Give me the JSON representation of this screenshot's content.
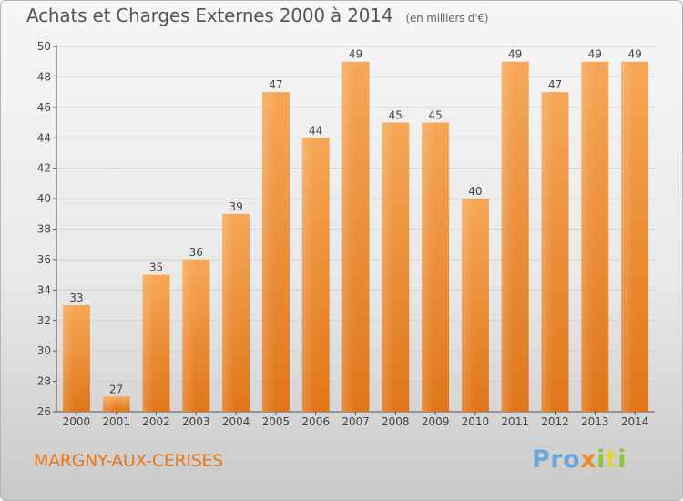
{
  "title": "Achats et Charges Externes 2000 à 2014",
  "subtitle": "(en milliers d'€)",
  "place": "MARGNY-AUX-CERISES",
  "logo": {
    "p1": "Pro",
    "p2": "x",
    "p3": "i",
    "p4": "t",
    "p5": "i"
  },
  "colors": {
    "bar": "#ec8a2c",
    "bar_light": "#f5a55a",
    "axis_text": "#444444",
    "place": "#e8781b"
  },
  "chart_data": {
    "type": "bar",
    "title": "Achats et Charges Externes 2000 à 2014",
    "subtitle": "(en milliers d'€)",
    "categories": [
      "2000",
      "2001",
      "2002",
      "2003",
      "2004",
      "2005",
      "2006",
      "2007",
      "2008",
      "2009",
      "2010",
      "2011",
      "2012",
      "2013",
      "2014"
    ],
    "values": [
      33,
      27,
      35,
      36,
      39,
      47,
      44,
      49,
      45,
      45,
      40,
      49,
      47,
      49,
      49
    ],
    "ylim": [
      26,
      50
    ],
    "yticks": [
      26,
      28,
      30,
      32,
      34,
      36,
      38,
      40,
      42,
      44,
      46,
      48,
      50
    ],
    "grid": true,
    "xlabel": "",
    "ylabel": ""
  }
}
